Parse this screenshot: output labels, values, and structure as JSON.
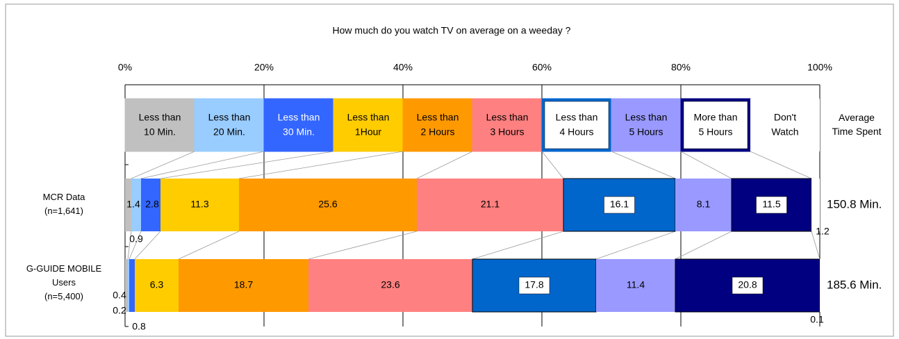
{
  "chart_data": {
    "type": "stacked-bar-100",
    "title": "How much do you watch TV on average on a weeday ?",
    "categories": [
      "MCR Data\n(n=1,641)",
      "G-GUIDE MOBILE\nUsers\n(n=5,400)"
    ],
    "average_title": "Average\nTime Spent",
    "averages": [
      "150.8 Min.",
      "185.6 Min."
    ],
    "xlim": [
      0,
      100
    ],
    "xticks": [
      {
        "value": 0,
        "label": "0%"
      },
      {
        "value": 20,
        "label": "20%"
      },
      {
        "value": 40,
        "label": "40%"
      },
      {
        "value": 60,
        "label": "60%"
      },
      {
        "value": 80,
        "label": "80%"
      },
      {
        "value": 100,
        "label": "100%"
      }
    ],
    "grid": true,
    "series": [
      {
        "name": "Less than\n10 Min.",
        "color": "#c0c0c0",
        "values": [
          0.9,
          0.4
        ]
      },
      {
        "name": "Less than\n20 Min.",
        "color": "#99ccff",
        "values": [
          1.4,
          0.2
        ]
      },
      {
        "name": "Less than\n30 Min.",
        "color": "#3366ff",
        "values": [
          2.8,
          0.8
        ]
      },
      {
        "name": "Less than\n1Hour",
        "color": "#ffcc00",
        "values": [
          11.3,
          6.3
        ]
      },
      {
        "name": "Less than\n2 Hours",
        "color": "#ff9900",
        "values": [
          25.6,
          18.7
        ]
      },
      {
        "name": "Less than\n3 Hours",
        "color": "#ff8080",
        "values": [
          21.1,
          23.6
        ]
      },
      {
        "name": "Less than\n4 Hours",
        "color": "#0066cc",
        "label_box": true,
        "values": [
          16.1,
          17.8
        ]
      },
      {
        "name": "Less than\n5 Hours",
        "color": "#9999ff",
        "values": [
          8.1,
          11.4
        ]
      },
      {
        "name": "More than\n5 Hours",
        "color": "#000080",
        "label_box": true,
        "values": [
          11.5,
          20.8
        ]
      },
      {
        "name": "Don't\nWatch",
        "color": "#ffffff",
        "values": [
          1.2,
          0.1
        ]
      }
    ]
  }
}
